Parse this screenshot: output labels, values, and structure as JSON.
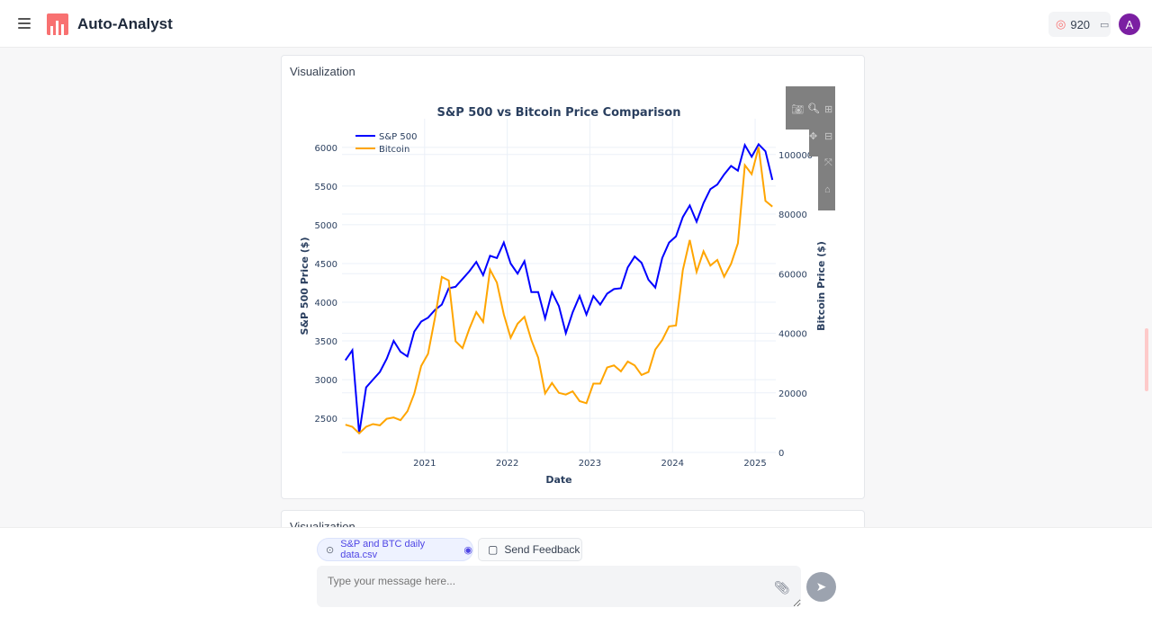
{
  "header": {
    "app_name": "Auto-Analyst",
    "credits": "920",
    "avatar_letter": "A"
  },
  "cards": [
    {
      "title": "Visualization"
    },
    {
      "title": "Visualization"
    }
  ],
  "bottom": {
    "file_chip": "S&P and BTC daily data.csv",
    "feedback_label": "Send Feedback",
    "input_placeholder": "Type your message here..."
  },
  "colors": {
    "sp500": "#0000ff",
    "bitcoin": "#ffa500",
    "avatar": "#7b1fa2",
    "logo": "#f87171"
  },
  "chart_data": {
    "type": "line",
    "title": "S&P 500 vs Bitcoin Price Comparison",
    "xlabel": "Date",
    "ylabel": "S&P 500 Price ($)",
    "y2label": "Bitcoin Price ($)",
    "x_ticks": [
      "2021",
      "2022",
      "2023",
      "2024",
      "2025"
    ],
    "y_ticks": [
      2500,
      3000,
      3500,
      4000,
      4500,
      5000,
      5500,
      6000
    ],
    "y2_ticks": [
      0,
      20000,
      40000,
      60000,
      80000,
      100000
    ],
    "ylim": [
      2060,
      6370
    ],
    "y2lim": [
      0,
      112000
    ],
    "xlim": [
      "2020-01",
      "2025-03"
    ],
    "legend": "top-left",
    "grid": true,
    "x": [
      "2020-01",
      "2020-02",
      "2020-03",
      "2020-04",
      "2020-05",
      "2020-06",
      "2020-07",
      "2020-08",
      "2020-09",
      "2020-10",
      "2020-11",
      "2020-12",
      "2021-01",
      "2021-02",
      "2021-03",
      "2021-04",
      "2021-05",
      "2021-06",
      "2021-07",
      "2021-08",
      "2021-09",
      "2021-10",
      "2021-11",
      "2021-12",
      "2022-01",
      "2022-02",
      "2022-03",
      "2022-04",
      "2022-05",
      "2022-06",
      "2022-07",
      "2022-08",
      "2022-09",
      "2022-10",
      "2022-11",
      "2022-12",
      "2023-01",
      "2023-02",
      "2023-03",
      "2023-04",
      "2023-05",
      "2023-06",
      "2023-07",
      "2023-08",
      "2023-09",
      "2023-10",
      "2023-11",
      "2023-12",
      "2024-01",
      "2024-02",
      "2024-03",
      "2024-04",
      "2024-05",
      "2024-06",
      "2024-07",
      "2024-08",
      "2024-09",
      "2024-10",
      "2024-11",
      "2024-12",
      "2025-01",
      "2025-02",
      "2025-03"
    ],
    "series": [
      {
        "name": "S&P 500",
        "axis": "y",
        "values": [
          3250,
          3380,
          2300,
          2900,
          3000,
          3100,
          3270,
          3500,
          3360,
          3300,
          3620,
          3750,
          3800,
          3900,
          3970,
          4180,
          4200,
          4300,
          4400,
          4520,
          4350,
          4600,
          4570,
          4770,
          4500,
          4370,
          4530,
          4130,
          4130,
          3790,
          4130,
          3950,
          3600,
          3870,
          4080,
          3840,
          4080,
          3970,
          4110,
          4170,
          4180,
          4450,
          4590,
          4510,
          4290,
          4190,
          4570,
          4770,
          4850,
          5100,
          5250,
          5040,
          5280,
          5460,
          5520,
          5650,
          5760,
          5700,
          6030,
          5880,
          6040,
          5950,
          5580
        ]
      },
      {
        "name": "Bitcoin",
        "axis": "y2",
        "values": [
          9300,
          8600,
          6400,
          8600,
          9500,
          9100,
          11300,
          11700,
          10800,
          13800,
          19700,
          29000,
          33100,
          45200,
          58900,
          57700,
          37300,
          35000,
          41500,
          47100,
          43800,
          61300,
          57000,
          46300,
          38500,
          43200,
          45500,
          37700,
          31800,
          19800,
          23300,
          20000,
          19400,
          20500,
          17200,
          16500,
          23100,
          23100,
          28500,
          29200,
          27200,
          30500,
          29200,
          26000,
          27000,
          34500,
          37700,
          42300,
          42600,
          61200,
          71300,
          60600,
          67500,
          62700,
          64600,
          59000,
          63300,
          70200,
          96400,
          93400,
          102400,
          84400,
          82500
        ]
      }
    ]
  }
}
